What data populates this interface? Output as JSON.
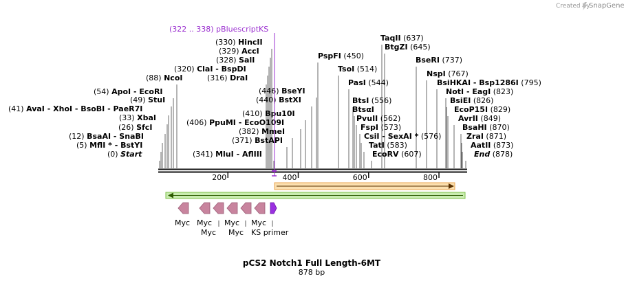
{
  "credit": {
    "prefix": "Created by",
    "brand": "SnapGene"
  },
  "title": "pCS2 Notch1 Full Length-6MT",
  "length_label": "878 bp",
  "sites": [
    {
      "num": "(0)",
      "text": "Start"
    },
    {
      "num": "(5)",
      "text": "MflI * - BstYI"
    },
    {
      "num": "(12)",
      "text": "BsaAI - SnaBI"
    },
    {
      "num": "(26)",
      "text": "SfcI"
    },
    {
      "num": "(33)",
      "text": "XbaI"
    },
    {
      "num": "(41)",
      "text": "AvaI - XhoI - BsoBI - PaeR7I"
    },
    {
      "num": "(49)",
      "text": "StuI"
    },
    {
      "num": "(54)",
      "text": "ApoI - EcoRI"
    },
    {
      "num": "(88)",
      "text": "NcoI"
    },
    {
      "num": "(316)",
      "text": "DraI"
    },
    {
      "num": "(320)",
      "text": "ClaI - BspDI"
    },
    {
      "num": "(328)",
      "text": "SalI"
    },
    {
      "num": "(329)",
      "text": "AccI"
    },
    {
      "num": "(330)",
      "text": "HincII"
    },
    {
      "num": "(341)",
      "text": "MluI - AflIII"
    },
    {
      "num": "(371)",
      "text": "BstAPI"
    },
    {
      "num": "(382)",
      "text": "MmeI"
    },
    {
      "num": "(406)",
      "text": "PpuMI - EcoO109I"
    },
    {
      "num": "(410)",
      "text": "Bpu10I"
    },
    {
      "num": "(440)",
      "text": "BstXI"
    },
    {
      "num": "(446)",
      "text": "BseYI"
    },
    {
      "num": "(450)",
      "text": "PspFI"
    },
    {
      "num": "(514)",
      "text": "TsoI"
    },
    {
      "num": "(544)",
      "text": "PasI"
    },
    {
      "num": "(556)",
      "text": "BtsI"
    },
    {
      "num": "",
      "text": "BtsαI"
    },
    {
      "num": "(562)",
      "text": "PvuII"
    },
    {
      "num": "(573)",
      "text": "FspI"
    },
    {
      "num": "(576)",
      "text": "CsiI - SexAI *"
    },
    {
      "num": "(583)",
      "text": "TatI"
    },
    {
      "num": "(607)",
      "text": "EcoRV"
    },
    {
      "num": "(637)",
      "text": "TaqII"
    },
    {
      "num": "(645)",
      "text": "BtgZI"
    },
    {
      "num": "(737)",
      "text": "BseRI"
    },
    {
      "num": "(767)",
      "text": "NspI"
    },
    {
      "num": "(795)",
      "text": "BsiHKAI - Bsp1286I"
    },
    {
      "num": "(823)",
      "text": "NotI - EagI"
    },
    {
      "num": "(826)",
      "text": "BsiEI"
    },
    {
      "num": "(829)",
      "text": "EcoP15I"
    },
    {
      "num": "(849)",
      "text": "AvrII"
    },
    {
      "num": "(870)",
      "text": "BsaHI"
    },
    {
      "num": "(871)",
      "text": "ZraI"
    },
    {
      "num": "(873)",
      "text": "AatII"
    },
    {
      "num": "(878)",
      "text": "End"
    }
  ],
  "primer_binding": {
    "label": "(322 .. 338) pBluescriptKS",
    "color": "#9b30d0"
  },
  "ruler": {
    "ticks": [
      "200",
      "400",
      "600",
      "800"
    ]
  },
  "features": {
    "orange_arrow": {
      "color": "#f4a030",
      "direction": "forward"
    },
    "green_arrow": {
      "color": "#60c030",
      "direction": "reverse"
    },
    "myc_tags": [
      {
        "label": "Myc",
        "color": "#c8849e"
      },
      {
        "label": "Myc",
        "color": "#c8849e"
      },
      {
        "label": "Myc",
        "color": "#c8849e"
      },
      {
        "label": "Myc",
        "color": "#c8849e"
      },
      {
        "label": "Myc",
        "color": "#c8849e"
      },
      {
        "label": "Myc",
        "color": "#c8849e"
      }
    ],
    "primer": {
      "label": "KS primer",
      "color": "#9a30e0"
    }
  }
}
